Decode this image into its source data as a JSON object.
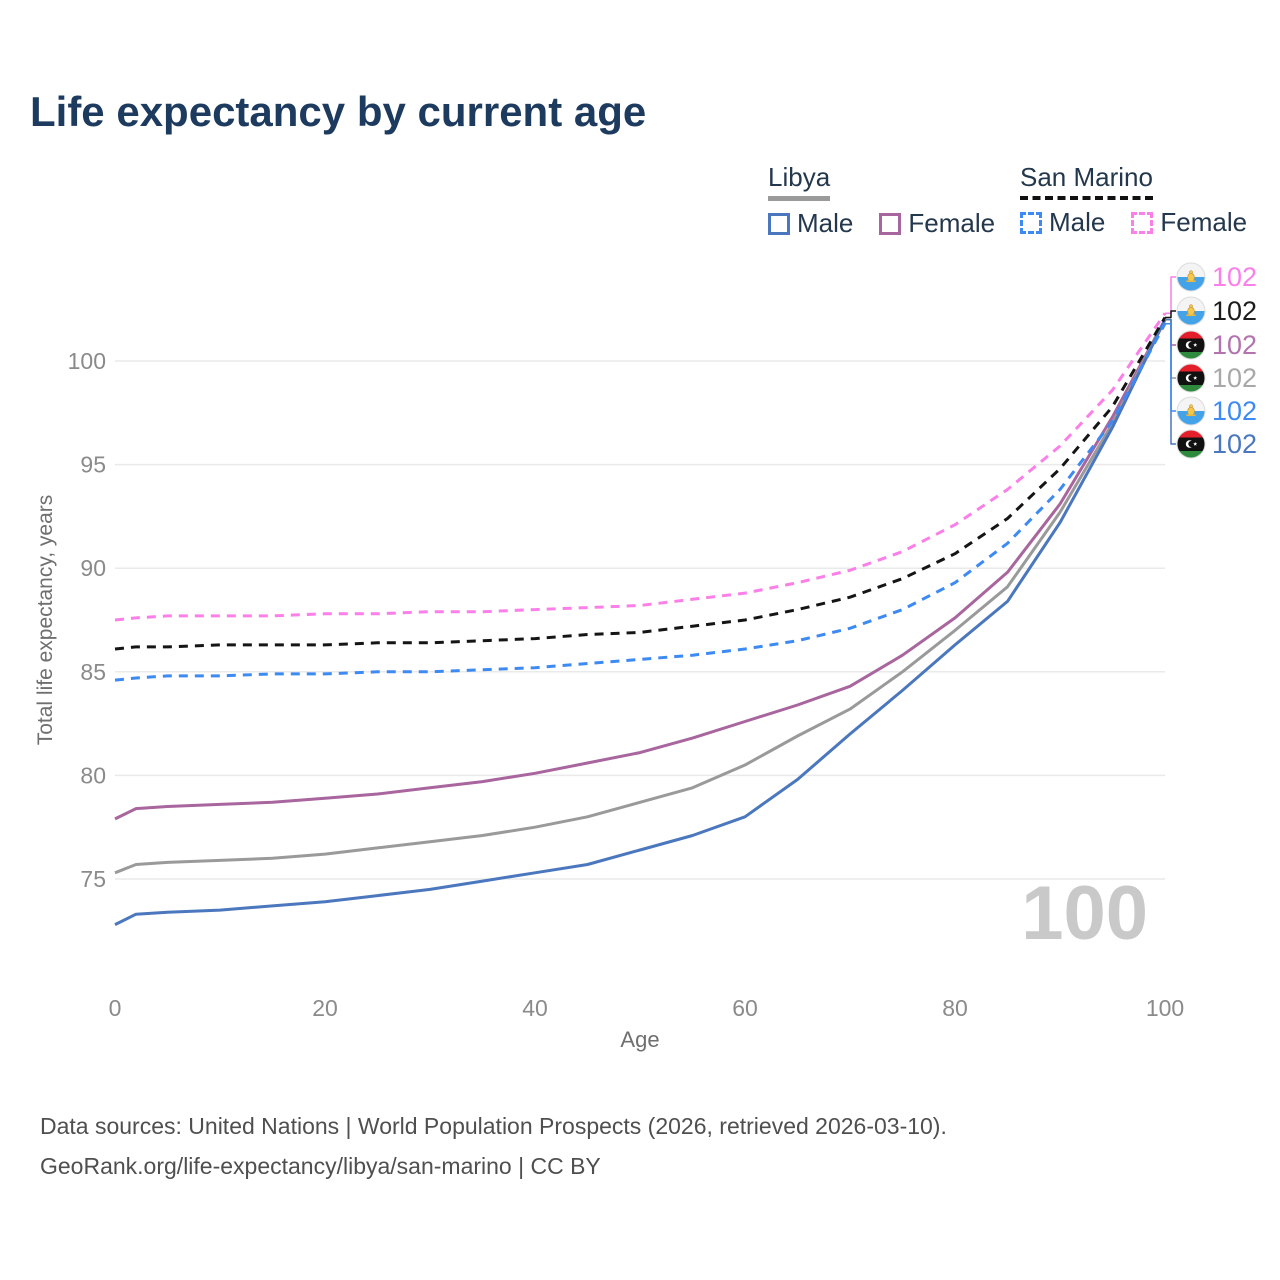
{
  "title": "Life expectancy by current age",
  "watermark": "100",
  "legend": {
    "groups": [
      {
        "name": "Libya",
        "line_style": "solid",
        "underline_color": "#9a9a9a",
        "items": [
          {
            "label": "Male",
            "color": "#4a77bd"
          },
          {
            "label": "Female",
            "color": "#a8659e"
          }
        ]
      },
      {
        "name": "San Marino",
        "line_style": "dashed",
        "underline_color": "#111111",
        "items": [
          {
            "label": "Male",
            "color": "#3d8af2"
          },
          {
            "label": "Female",
            "color": "#fb7fe8"
          }
        ]
      }
    ]
  },
  "footer": {
    "line1": "Data sources: United Nations | World Population Prospects (2026, retrieved 2026-03-10).",
    "line2": "GeoRank.org/life-expectancy/libya/san-marino | CC BY"
  },
  "chart_data": {
    "type": "line",
    "title": "Life expectancy by current age",
    "xlabel": "Age",
    "ylabel": "Total life expectancy, years",
    "xlim": [
      0,
      100
    ],
    "ylim": [
      72,
      103
    ],
    "xticks": [
      0,
      20,
      40,
      60,
      80,
      100
    ],
    "yticks": [
      75,
      80,
      85,
      90,
      95,
      100
    ],
    "grid": "horizontal",
    "legend_position": "top-right",
    "x": [
      0,
      2,
      5,
      10,
      15,
      20,
      25,
      30,
      35,
      40,
      45,
      50,
      55,
      60,
      65,
      70,
      75,
      80,
      85,
      90,
      95,
      100
    ],
    "series": [
      {
        "name": "Libya Female",
        "country": "Libya",
        "sex": "Female",
        "color": "#a8659e",
        "label_color": "#b273ae",
        "dash": false,
        "flag": "libya",
        "end_label": "102",
        "endpoint_row": 2,
        "values": [
          77.9,
          78.4,
          78.5,
          78.6,
          78.7,
          78.9,
          79.1,
          79.4,
          79.7,
          80.1,
          80.6,
          81.1,
          81.8,
          82.6,
          83.4,
          84.3,
          85.8,
          87.6,
          89.8,
          93.1,
          97.3,
          102
        ]
      },
      {
        "name": "Libya Total",
        "country": "Libya",
        "sex": "Both",
        "color": "#9a9a9a",
        "label_color": "#a8a8a8",
        "dash": false,
        "flag": "libya",
        "end_label": "102",
        "endpoint_row": 3,
        "values": [
          75.3,
          75.7,
          75.8,
          75.9,
          76.0,
          76.2,
          76.5,
          76.8,
          77.1,
          77.5,
          78.0,
          78.7,
          79.4,
          80.5,
          81.9,
          83.2,
          85.0,
          87.0,
          89.1,
          92.7,
          97.0,
          102
        ]
      },
      {
        "name": "Libya Male",
        "country": "Libya",
        "sex": "Male",
        "color": "#4a77bd",
        "label_color": "#4a77bd",
        "dash": false,
        "flag": "libya",
        "end_label": "102",
        "endpoint_row": 5,
        "values": [
          72.8,
          73.3,
          73.4,
          73.5,
          73.7,
          73.9,
          74.2,
          74.5,
          74.9,
          75.3,
          75.7,
          76.4,
          77.1,
          78.0,
          79.8,
          82.0,
          84.1,
          86.3,
          88.4,
          92.2,
          96.8,
          102
        ]
      },
      {
        "name": "San Marino Female",
        "country": "San Marino",
        "sex": "Female",
        "color": "#fb7fe8",
        "label_color": "#fb7fe8",
        "dash": true,
        "flag": "san-marino",
        "end_label": "102",
        "endpoint_row": 0,
        "values": [
          87.5,
          87.6,
          87.7,
          87.7,
          87.7,
          87.8,
          87.8,
          87.9,
          87.9,
          88.0,
          88.1,
          88.2,
          88.5,
          88.8,
          89.3,
          89.9,
          90.8,
          92.1,
          93.8,
          95.9,
          98.6,
          102.3
        ]
      },
      {
        "name": "San Marino Total",
        "country": "San Marino",
        "sex": "Both",
        "color": "#151515",
        "label_color": "#1c1c1c",
        "dash": true,
        "flag": "san-marino",
        "end_label": "102",
        "endpoint_row": 1,
        "values": [
          86.1,
          86.2,
          86.2,
          86.3,
          86.3,
          86.3,
          86.4,
          86.4,
          86.5,
          86.6,
          86.8,
          86.9,
          87.2,
          87.5,
          88.0,
          88.6,
          89.5,
          90.7,
          92.4,
          94.8,
          97.8,
          102.1
        ]
      },
      {
        "name": "San Marino Male",
        "country": "San Marino",
        "sex": "Male",
        "color": "#3d8af2",
        "label_color": "#3d8af2",
        "dash": true,
        "flag": "san-marino",
        "end_label": "102",
        "endpoint_row": 4,
        "values": [
          84.6,
          84.7,
          84.8,
          84.8,
          84.9,
          84.9,
          85.0,
          85.0,
          85.1,
          85.2,
          85.4,
          85.6,
          85.8,
          86.1,
          86.5,
          87.1,
          88.0,
          89.3,
          91.2,
          93.8,
          97.1,
          101.8
        ]
      }
    ]
  }
}
